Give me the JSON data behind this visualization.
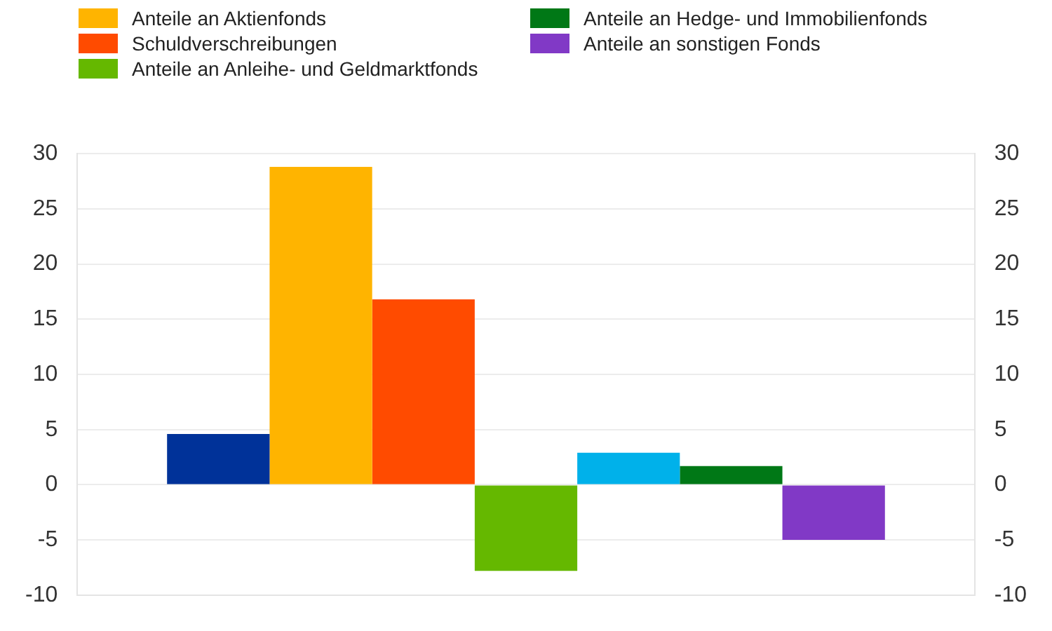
{
  "chart_data": {
    "type": "bar",
    "categories": [
      null
    ],
    "series": [
      {
        "name": null,
        "color": "#003299",
        "values": [
          4.6
        ]
      },
      {
        "name": "Anteile an Aktienfonds",
        "color": "#ffb400",
        "values": [
          28.8
        ]
      },
      {
        "name": "Schuldverschreibungen",
        "color": "#ff4b00",
        "values": [
          16.8
        ]
      },
      {
        "name": "Anteile an Anleihe- und Geldmarktfonds",
        "color": "#65b800",
        "values": [
          -7.8
        ]
      },
      {
        "name": null,
        "color": "#00b1ea",
        "values": [
          2.9
        ]
      },
      {
        "name": "Anteile an Hedge- und Immobilienfonds",
        "color": "#007816",
        "values": [
          1.7
        ]
      },
      {
        "name": "Anteile an sonstigen Fonds",
        "color": "#8139c6",
        "values": [
          -5.0
        ]
      }
    ],
    "ylim": [
      -10,
      30
    ],
    "yticks": [
      -10,
      -5,
      0,
      5,
      10,
      15,
      20,
      25,
      30
    ],
    "y2lim": [
      -10,
      30
    ],
    "y2ticks": [
      -10,
      -5,
      0,
      5,
      10,
      15,
      20,
      25,
      30
    ],
    "grid": "y",
    "legend": "top"
  }
}
